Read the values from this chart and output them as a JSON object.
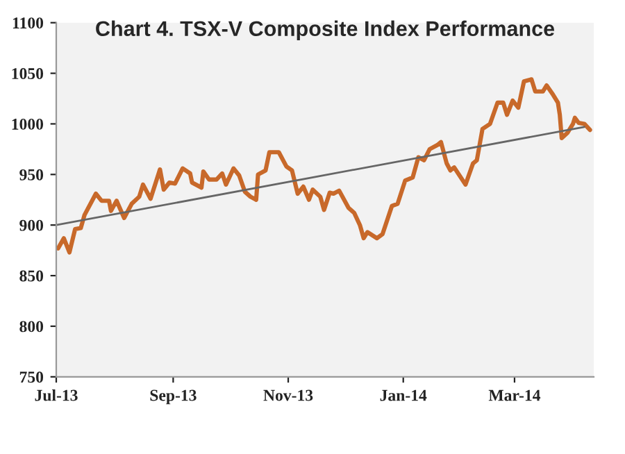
{
  "chart_data": {
    "type": "line",
    "title": "Chart 4. TSX-V Composite Index Performance",
    "series": [
      {
        "color": "#c8692a",
        "x": [
          "2013-07-02",
          "2013-07-05",
          "2013-07-08",
          "2013-07-11",
          "2013-07-14",
          "2013-07-16",
          "2013-07-22",
          "2013-07-25",
          "2013-07-29",
          "2013-07-30",
          "2013-08-02",
          "2013-08-06",
          "2013-08-10",
          "2013-08-14",
          "2013-08-16",
          "2013-08-20",
          "2013-08-25",
          "2013-08-27",
          "2013-08-30",
          "2013-09-02",
          "2013-09-06",
          "2013-09-10",
          "2013-09-11",
          "2013-09-16",
          "2013-09-17",
          "2013-09-20",
          "2013-09-24",
          "2013-09-27",
          "2013-09-29",
          "2013-10-03",
          "2013-10-06",
          "2013-10-09",
          "2013-10-12",
          "2013-10-15",
          "2013-10-16",
          "2013-10-20",
          "2013-10-22",
          "2013-10-27",
          "2013-10-31",
          "2013-11-03",
          "2013-11-06",
          "2013-11-09",
          "2013-11-12",
          "2013-11-14",
          "2013-11-18",
          "2013-11-20",
          "2013-11-23",
          "2013-11-25",
          "2013-11-28",
          "2013-12-03",
          "2013-12-06",
          "2013-12-09",
          "2013-12-11",
          "2013-12-13",
          "2013-12-18",
          "2013-12-21",
          "2013-12-26",
          "2013-12-29",
          "2014-01-02",
          "2014-01-06",
          "2014-01-09",
          "2014-01-12",
          "2014-01-15",
          "2014-01-19",
          "2014-01-21",
          "2014-01-24",
          "2014-01-26",
          "2014-01-28",
          "2014-02-03",
          "2014-02-07",
          "2014-02-09",
          "2014-02-12",
          "2014-02-16",
          "2014-02-20",
          "2014-02-23",
          "2014-02-25",
          "2014-02-28",
          "2014-03-03",
          "2014-03-06",
          "2014-03-10",
          "2014-03-12",
          "2014-03-16",
          "2014-03-18",
          "2014-03-21",
          "2014-03-24",
          "2014-03-25",
          "2014-03-26",
          "2014-03-29",
          "2014-04-01",
          "2014-04-02",
          "2014-04-04",
          "2014-04-07",
          "2014-04-10"
        ],
        "values": [
          877,
          887,
          873,
          896,
          897,
          910,
          931,
          924,
          924,
          914,
          924,
          907,
          921,
          928,
          940,
          926,
          955,
          935,
          942,
          941,
          956,
          951,
          942,
          937,
          953,
          945,
          945,
          951,
          940,
          956,
          949,
          933,
          928,
          925,
          950,
          954,
          972,
          972,
          958,
          954,
          931,
          938,
          925,
          935,
          928,
          915,
          932,
          931,
          934,
          917,
          912,
          900,
          887,
          893,
          887,
          891,
          919,
          921,
          944,
          947,
          967,
          964,
          975,
          979,
          982,
          961,
          954,
          957,
          940,
          961,
          964,
          995,
          1000,
          1021,
          1021,
          1009,
          1023,
          1016,
          1042,
          1044,
          1032,
          1032,
          1038,
          1030,
          1021,
          1009,
          986,
          991,
          1000,
          1006,
          1001,
          1000,
          994
        ]
      },
      {
        "color": "#666666",
        "x": [
          "2013-07-01",
          "2014-04-07"
        ],
        "values": [
          900,
          997
        ]
      }
    ],
    "xlim": [
      "2013-07-01",
      "2014-04-12"
    ],
    "xticks": [
      {
        "value": "2013-07-01",
        "label": "Jul-13"
      },
      {
        "value": "2013-09-01",
        "label": "Sep-13"
      },
      {
        "value": "2013-11-01",
        "label": "Nov-13"
      },
      {
        "value": "2014-01-01",
        "label": "Jan-14"
      },
      {
        "value": "2014-03-01",
        "label": "Mar-14"
      }
    ],
    "ylim": [
      750,
      1100
    ],
    "yticks": [
      750,
      800,
      850,
      900,
      950,
      1000,
      1050,
      1100
    ],
    "grid": false,
    "legend": false
  }
}
